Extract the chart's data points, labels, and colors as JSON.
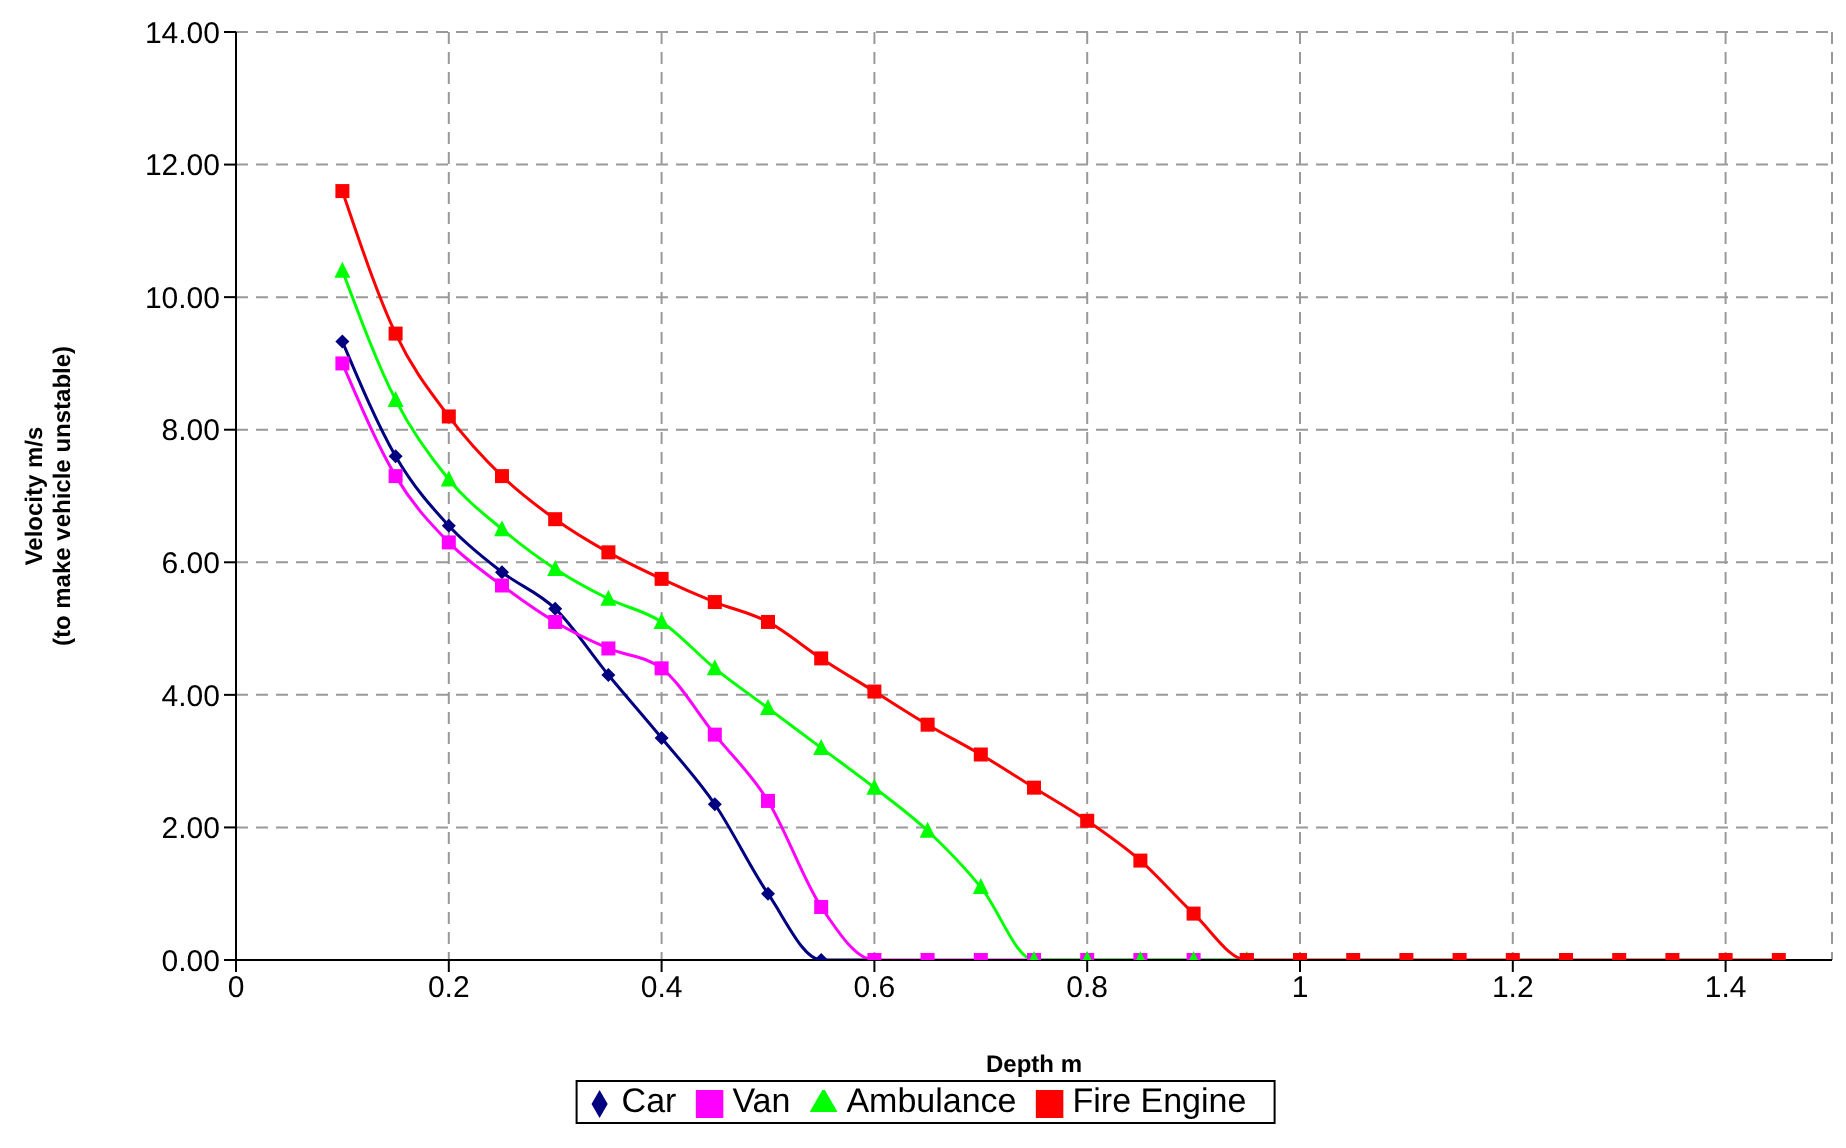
{
  "chart_data": {
    "type": "line",
    "xlabel": "Depth m",
    "ylabel": "Velocity m/s\n(to make vehicle unstable)",
    "x": [
      0.1,
      0.15,
      0.2,
      0.25,
      0.3,
      0.35,
      0.4,
      0.45,
      0.5,
      0.55,
      0.6,
      0.65,
      0.7,
      0.75,
      0.8,
      0.85,
      0.9,
      0.95,
      1.0,
      1.05,
      1.1,
      1.15,
      1.2,
      1.25,
      1.3,
      1.35,
      1.4,
      1.45
    ],
    "series": [
      {
        "name": "Car",
        "color": "#000080",
        "marker": "diamond",
        "values": [
          9.33,
          7.6,
          6.55,
          5.85,
          5.3,
          4.3,
          3.35,
          2.35,
          1.0,
          0,
          0,
          null,
          null,
          null,
          null,
          null,
          null,
          null,
          null,
          null,
          null,
          null,
          null,
          null,
          null,
          null,
          null,
          null
        ]
      },
      {
        "name": "Van",
        "color": "#ff00ff",
        "marker": "square",
        "values": [
          9.0,
          7.3,
          6.3,
          5.65,
          5.1,
          4.7,
          4.4,
          3.4,
          2.4,
          0.8,
          0,
          0,
          0,
          0,
          0,
          0,
          0,
          0,
          null,
          null,
          null,
          null,
          null,
          null,
          null,
          null,
          null,
          null
        ]
      },
      {
        "name": "Ambulance",
        "color": "#00ff00",
        "marker": "triangle",
        "values": [
          10.4,
          8.45,
          7.25,
          6.5,
          5.9,
          5.45,
          5.1,
          4.4,
          3.8,
          3.2,
          2.6,
          1.95,
          1.1,
          0,
          0,
          0,
          0,
          0,
          null,
          null,
          null,
          null,
          null,
          null,
          null,
          null,
          null,
          null
        ]
      },
      {
        "name": "Fire Engine",
        "color": "#ff0000",
        "marker": "square",
        "values": [
          11.6,
          9.45,
          8.2,
          7.3,
          6.65,
          6.15,
          5.75,
          5.4,
          5.1,
          4.55,
          4.05,
          3.55,
          3.1,
          2.6,
          2.1,
          1.5,
          0.7,
          0,
          0,
          0,
          0,
          0,
          0,
          0,
          0,
          0,
          0,
          0
        ]
      }
    ],
    "xlim": [
      0,
      1.5
    ],
    "xticks": [
      0,
      0.2,
      0.4,
      0.6,
      0.8,
      1,
      1.2,
      1.4
    ],
    "ylim": [
      0,
      14
    ],
    "yticks": [
      {
        "value": 0,
        "label": "0.00"
      },
      {
        "value": 2,
        "label": "2.00"
      },
      {
        "value": 4,
        "label": "4.00"
      },
      {
        "value": 6,
        "label": "6.00"
      },
      {
        "value": 8,
        "label": "8.00"
      },
      {
        "value": 10,
        "label": "10.00"
      },
      {
        "value": 12,
        "label": "12.00"
      },
      {
        "value": 14,
        "label": "14.00"
      }
    ],
    "grid": true,
    "legend": "bottom",
    "line_style": "solid"
  }
}
